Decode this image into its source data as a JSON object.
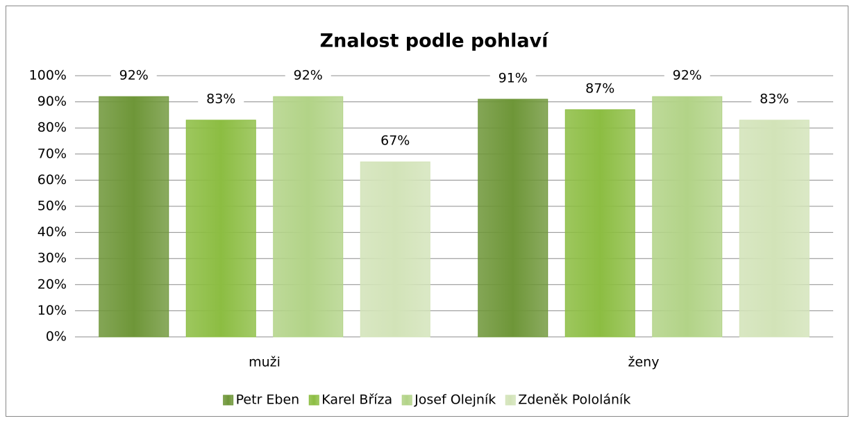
{
  "chart_data": {
    "type": "bar",
    "title": "Znalost podle pohlaví",
    "categories": [
      "muži",
      "ženy"
    ],
    "series": [
      {
        "name": "Petr Eben",
        "color": "#6e9638",
        "values": [
          92,
          91
        ],
        "value_labels": [
          "92%",
          "91%"
        ]
      },
      {
        "name": "Karel Bříza",
        "color": "#8cbd42",
        "values": [
          83,
          87
        ],
        "value_labels": [
          "83%",
          "87%"
        ]
      },
      {
        "name": "Josef Olejník",
        "color": "#b2d387",
        "values": [
          92,
          92
        ],
        "value_labels": [
          "92%",
          "92%"
        ]
      },
      {
        "name": "Zdeněk Pololáník",
        "color": "#d2e3b8",
        "values": [
          67,
          83
        ],
        "value_labels": [
          "67%",
          "83%"
        ]
      }
    ],
    "ylim": [
      0,
      100
    ],
    "yticks": [
      {
        "value": 0,
        "label": "0%"
      },
      {
        "value": 10,
        "label": "10%"
      },
      {
        "value": 20,
        "label": "20%"
      },
      {
        "value": 30,
        "label": "30%"
      },
      {
        "value": 40,
        "label": "40%"
      },
      {
        "value": 50,
        "label": "50%"
      },
      {
        "value": 60,
        "label": "60%"
      },
      {
        "value": 70,
        "label": "70%"
      },
      {
        "value": 80,
        "label": "80%"
      },
      {
        "value": 90,
        "label": "90%"
      },
      {
        "value": 100,
        "label": "100%"
      }
    ],
    "grid": true,
    "legend": "bottom"
  }
}
